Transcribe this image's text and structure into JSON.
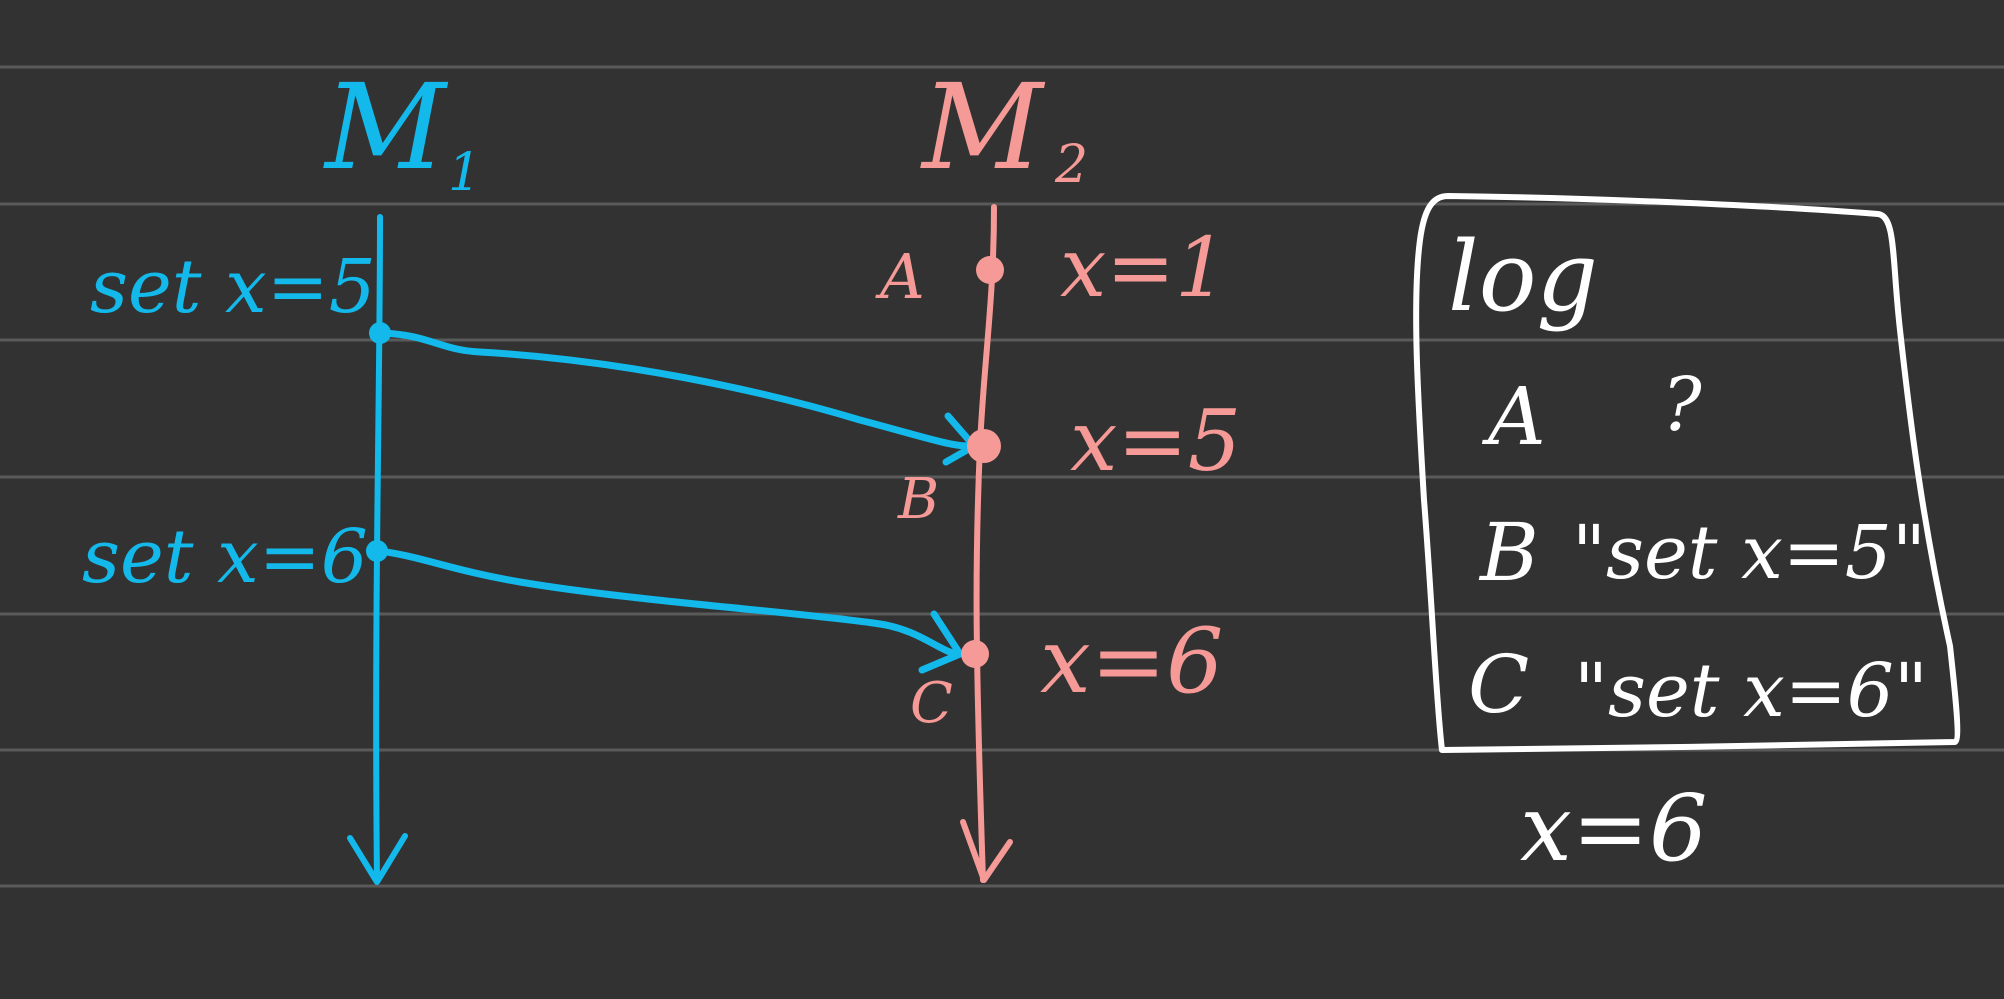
{
  "colors": {
    "background": "#323232",
    "rule_line": "#5a5a5a",
    "m1": "#12b9ea",
    "m2": "#f59a96",
    "log": "#ffffff"
  },
  "machines": {
    "m1": {
      "label": "M",
      "subscript": "1",
      "events": [
        {
          "label": "set x=5"
        },
        {
          "label": "set x=6"
        }
      ]
    },
    "m2": {
      "label": "M",
      "subscript": "2",
      "events": [
        {
          "id": "A",
          "state": "x=1"
        },
        {
          "id": "B",
          "state": "x=5"
        },
        {
          "id": "C",
          "state": "x=6"
        }
      ]
    }
  },
  "messages": [
    {
      "from": "m1.set x=5",
      "to": "m2.B"
    },
    {
      "from": "m1.set x=6",
      "to": "m2.C"
    }
  ],
  "log": {
    "title": "log",
    "entries": [
      {
        "id": "A",
        "value": "?"
      },
      {
        "id": "B",
        "value": "\"set x=5\""
      },
      {
        "id": "C",
        "value": "\"set x=6\""
      }
    ],
    "result": "x=6"
  }
}
